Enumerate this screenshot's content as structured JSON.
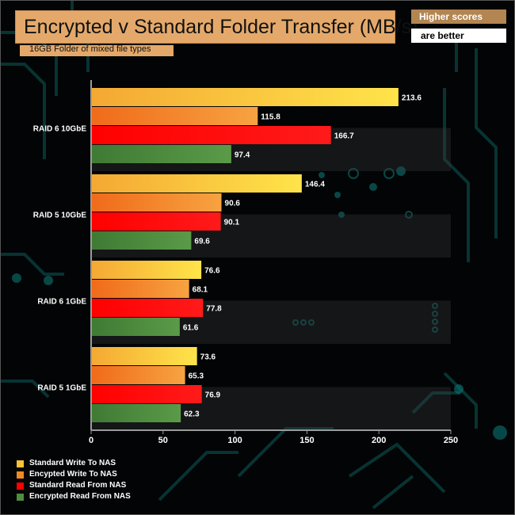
{
  "title": "Encrypted v Standard Folder Transfer (MB/s)",
  "subtitle": "16GB Folder of mixed file types",
  "note": {
    "line1": "Higher scores",
    "line2": "are better"
  },
  "chart_data": {
    "type": "bar",
    "orientation": "horizontal",
    "categories": [
      "RAID 6 10GbE",
      "RAID 5 10GbE",
      "RAID 6 1GbE",
      "RAID 5 1GbE"
    ],
    "series": [
      {
        "name": "Standard Write To NAS",
        "values": [
          213.6,
          146.4,
          76.6,
          73.6
        ],
        "color": "#fbd43d"
      },
      {
        "name": "Encypted Write To NAS",
        "values": [
          115.8,
          90.6,
          68.1,
          65.3
        ],
        "color": "#f08a24"
      },
      {
        "name": "Standard Read From NAS",
        "values": [
          166.7,
          90.1,
          77.8,
          76.9
        ],
        "color": "#ff0000"
      },
      {
        "name": "Encrypted Read From NAS",
        "values": [
          97.4,
          69.6,
          61.6,
          62.3
        ],
        "color": "#4e8c3e"
      }
    ],
    "xlim": [
      0,
      250
    ],
    "xticks": [
      "0",
      "50",
      "100",
      "150",
      "200",
      "250"
    ],
    "xlabel": "",
    "ylabel": "",
    "grid": false,
    "legend_position": "bottom-left"
  }
}
